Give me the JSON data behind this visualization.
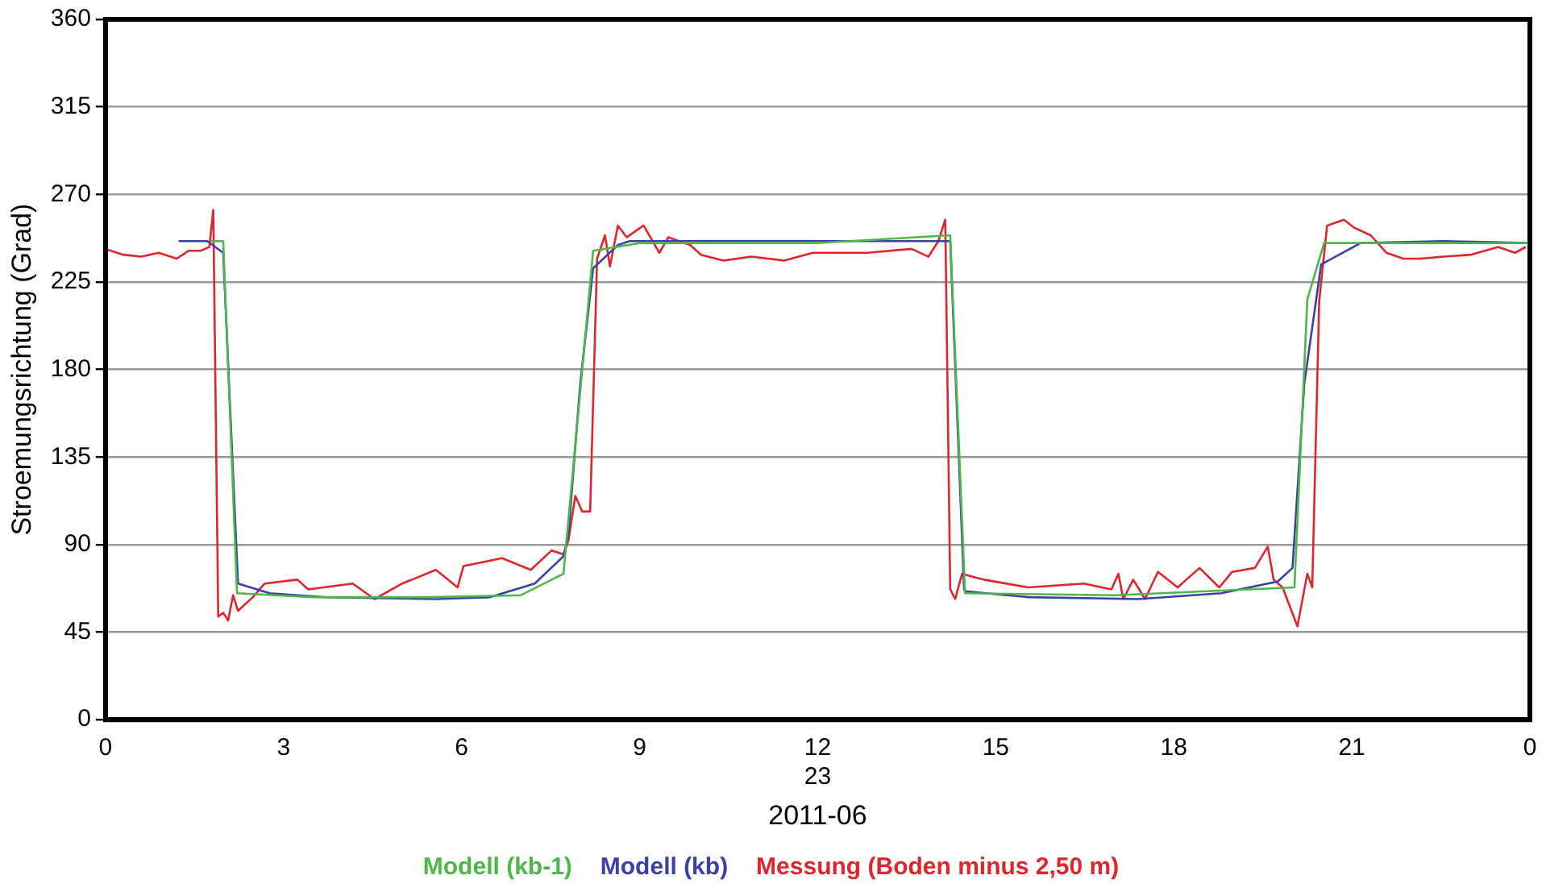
{
  "chart_data": {
    "type": "line",
    "xlabel": "2011-06",
    "ylabel": "Stroemungsrichtung (Grad)",
    "xlim": [
      "2011-06-23T00:00",
      "2011-06-24T00:00"
    ],
    "xticks": [
      {
        "value": "2011-06-23T00:00",
        "label": "0"
      },
      {
        "value": "2011-06-23T03:00",
        "label": "3"
      },
      {
        "value": "2011-06-23T06:00",
        "label": "6"
      },
      {
        "value": "2011-06-23T09:00",
        "label": "9"
      },
      {
        "value": "2011-06-23T12:00",
        "label": "12\n23"
      },
      {
        "value": "2011-06-23T15:00",
        "label": "15"
      },
      {
        "value": "2011-06-23T18:00",
        "label": "18"
      },
      {
        "value": "2011-06-23T21:00",
        "label": "21"
      },
      {
        "value": "2011-06-24T00:00",
        "label": "0"
      }
    ],
    "ylim": [
      0,
      360
    ],
    "yticks": [
      0,
      45,
      90,
      135,
      180,
      225,
      270,
      315,
      360
    ],
    "grid": "y",
    "legend": "bottom",
    "marker": "none",
    "line_style": "solid",
    "series": [
      {
        "name": "Modell (kb-1)",
        "color": "#4cb848",
        "x": [
          "2011-06-23T01:47",
          "2011-06-23T01:59",
          "2011-06-23T02:13",
          "2011-06-23T03:30",
          "2011-06-23T05:30",
          "2011-06-23T07:00",
          "2011-06-23T07:43",
          "2011-06-23T08:13",
          "2011-06-23T09:00",
          "2011-06-23T12:00",
          "2011-06-23T14:14",
          "2011-06-23T14:29",
          "2011-06-23T17:00",
          "2011-06-23T20:02",
          "2011-06-23T20:15",
          "2011-06-23T20:32",
          "2011-06-24T00:00"
        ],
        "values": [
          246,
          246,
          65,
          63,
          63,
          64,
          75,
          241,
          245,
          245,
          249,
          65,
          64,
          68,
          216,
          245,
          245
        ]
      },
      {
        "name": "Modell (kb)",
        "color": "#3b3fa8",
        "x": [
          "2011-06-23T01:14",
          "2011-06-23T01:43",
          "2011-06-23T01:59",
          "2011-06-23T02:14",
          "2011-06-23T02:46",
          "2011-06-23T03:41",
          "2011-06-23T05:34",
          "2011-06-23T06:29",
          "2011-06-23T07:14",
          "2011-06-23T07:43",
          "2011-06-23T07:48",
          "2011-06-23T08:00",
          "2011-06-23T08:13",
          "2011-06-23T08:38",
          "2011-06-23T08:50",
          "2011-06-23T12:00",
          "2011-06-23T14:14",
          "2011-06-23T14:28",
          "2011-06-23T14:29",
          "2011-06-23T15:33",
          "2011-06-23T17:24",
          "2011-06-23T18:48",
          "2011-06-23T19:45",
          "2011-06-23T20:00",
          "2011-06-23T20:12",
          "2011-06-23T20:29",
          "2011-06-23T21:09",
          "2011-06-23T22:33",
          "2011-06-24T00:00"
        ],
        "values": [
          246,
          246,
          240,
          70,
          65,
          63,
          62,
          63,
          70,
          84,
          95,
          173,
          232,
          244,
          246,
          246,
          246,
          67,
          66,
          63,
          62,
          65,
          71,
          78,
          173,
          234,
          245,
          246,
          245
        ]
      },
      {
        "name": "Messung (Boden minus 2,50 m)",
        "color": "#e0262c",
        "x": [
          "2011-06-23T00:00",
          "2011-06-23T00:18",
          "2011-06-23T00:36",
          "2011-06-23T00:54",
          "2011-06-23T01:12",
          "2011-06-23T01:24",
          "2011-06-23T01:36",
          "2011-06-23T01:45",
          "2011-06-23T01:49",
          "2011-06-23T01:54",
          "2011-06-23T01:59",
          "2011-06-23T02:04",
          "2011-06-23T02:09",
          "2011-06-23T02:14",
          "2011-06-23T02:29",
          "2011-06-23T02:41",
          "2011-06-23T03:14",
          "2011-06-23T03:25",
          "2011-06-23T04:10",
          "2011-06-23T04:32",
          "2011-06-23T05:00",
          "2011-06-23T05:34",
          "2011-06-23T05:56",
          "2011-06-23T06:02",
          "2011-06-23T06:41",
          "2011-06-23T07:10",
          "2011-06-23T07:31",
          "2011-06-23T07:43",
          "2011-06-23T07:48",
          "2011-06-23T07:55",
          "2011-06-23T08:02",
          "2011-06-23T08:10",
          "2011-06-23T08:17",
          "2011-06-23T08:25",
          "2011-06-23T08:30",
          "2011-06-23T08:38",
          "2011-06-23T08:47",
          "2011-06-23T09:04",
          "2011-06-23T09:20",
          "2011-06-23T09:29",
          "2011-06-23T09:51",
          "2011-06-23T10:02",
          "2011-06-23T10:25",
          "2011-06-23T10:53",
          "2011-06-23T11:26",
          "2011-06-23T11:55",
          "2011-06-23T12:22",
          "2011-06-23T12:50",
          "2011-06-23T13:35",
          "2011-06-23T13:52",
          "2011-06-23T14:02",
          "2011-06-23T14:09",
          "2011-06-23T14:14",
          "2011-06-23T14:19",
          "2011-06-23T14:26",
          "2011-06-23T14:40",
          "2011-06-23T14:48",
          "2011-06-23T15:33",
          "2011-06-23T16:29",
          "2011-06-23T16:57",
          "2011-06-23T17:04",
          "2011-06-23T17:09",
          "2011-06-23T17:19",
          "2011-06-23T17:31",
          "2011-06-23T17:44",
          "2011-06-23T18:04",
          "2011-06-23T18:26",
          "2011-06-23T18:46",
          "2011-06-23T18:59",
          "2011-06-23T19:22",
          "2011-06-23T19:35",
          "2011-06-23T19:41",
          "2011-06-23T19:50",
          "2011-06-23T20:05",
          "2011-06-23T20:15",
          "2011-06-23T20:20",
          "2011-06-23T20:27",
          "2011-06-23T20:35",
          "2011-06-23T20:52",
          "2011-06-23T21:02",
          "2011-06-23T21:19",
          "2011-06-23T21:35",
          "2011-06-23T21:52",
          "2011-06-23T22:09",
          "2011-06-23T22:33",
          "2011-06-23T23:00",
          "2011-06-23T23:28",
          "2011-06-23T23:45",
          "2011-06-23T23:56"
        ],
        "values": [
          242,
          239,
          238,
          240,
          237,
          241,
          241,
          243,
          262,
          53,
          55,
          51,
          64,
          56,
          63,
          70,
          72,
          67,
          70,
          62,
          70,
          77,
          68,
          79,
          83,
          77,
          87,
          85,
          92,
          115,
          107,
          107,
          237,
          249,
          233,
          254,
          248,
          254,
          240,
          248,
          244,
          239,
          236,
          238,
          236,
          240,
          240,
          240,
          242,
          238,
          246,
          257,
          67,
          62,
          75,
          73,
          72,
          68,
          70,
          67,
          75,
          62,
          72,
          62,
          76,
          68,
          78,
          68,
          76,
          78,
          89,
          72,
          68,
          48,
          75,
          68,
          215,
          254,
          257,
          253,
          249,
          240,
          237,
          237,
          238,
          239,
          243,
          240,
          243
        ]
      }
    ]
  }
}
